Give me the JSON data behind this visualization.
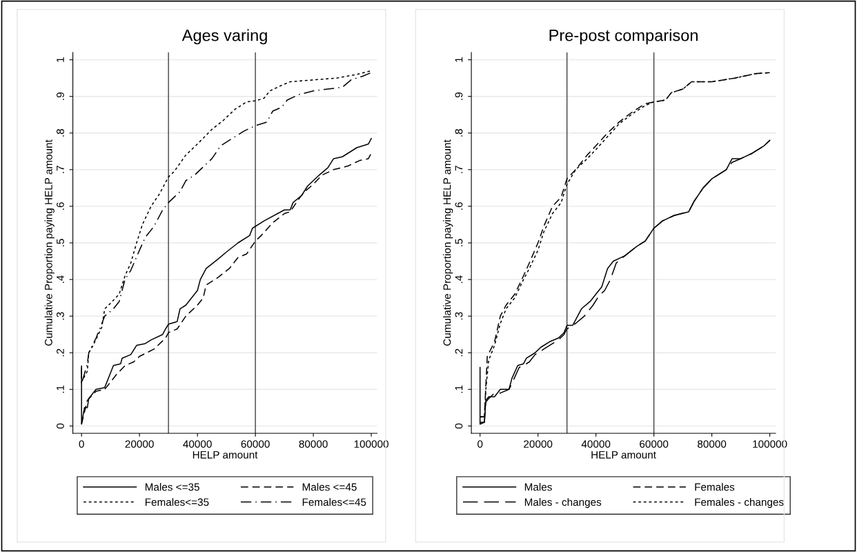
{
  "chart_data": [
    {
      "type": "line",
      "title": "Ages varing",
      "xlabel": "HELP amount",
      "ylabel": "Cumulative Proportion paying HELP amount",
      "xlim": [
        -3000,
        102000
      ],
      "ylim": [
        -0.02,
        1.02
      ],
      "xticks": [
        0,
        20000,
        40000,
        60000,
        80000,
        100000
      ],
      "yticks": [
        {
          "value": 0,
          "label": "0"
        },
        {
          "value": 0.1,
          "label": ".1"
        },
        {
          "value": 0.2,
          "label": ".2"
        },
        {
          "value": 0.3,
          "label": ".3"
        },
        {
          "value": 0.4,
          "label": ".4"
        },
        {
          "value": 0.5,
          "label": ".5"
        },
        {
          "value": 0.6,
          "label": ".6"
        },
        {
          "value": 0.7,
          "label": ".7"
        },
        {
          "value": 0.8,
          "label": ".8"
        },
        {
          "value": 0.9,
          "label": ".9"
        },
        {
          "value": 1,
          "label": "1"
        }
      ],
      "grid": "y",
      "legend": "bottom",
      "marker": "none",
      "ref_lines": [
        {
          "axis": "x",
          "value": 30000,
          "color": "#404040"
        },
        {
          "axis": "x",
          "value": 60000,
          "color": "#404040"
        }
      ],
      "series": [
        {
          "name": "Males <=35",
          "color": "#000000",
          "line_style": "solid",
          "x": [
            0,
            0,
            1000,
            2000,
            2500,
            5000,
            8000,
            10000,
            11000,
            13500,
            14000,
            17000,
            19000,
            22000,
            24000,
            28000,
            29000,
            30000,
            33000,
            34000,
            36000,
            40000,
            41000,
            43000,
            47000,
            50000,
            54000,
            58000,
            59000,
            63000,
            70000,
            72000,
            73000,
            76000,
            78000,
            82000,
            85000,
            87000,
            90000,
            95000,
            99000,
            100000
          ],
          "values": [
            0.155,
            0.005,
            0.05,
            0.05,
            0.075,
            0.1,
            0.105,
            0.145,
            0.165,
            0.17,
            0.185,
            0.195,
            0.22,
            0.225,
            0.235,
            0.25,
            0.265,
            0.278,
            0.285,
            0.32,
            0.33,
            0.37,
            0.4,
            0.43,
            0.455,
            0.475,
            0.5,
            0.52,
            0.54,
            0.56,
            0.59,
            0.59,
            0.61,
            0.63,
            0.655,
            0.685,
            0.705,
            0.73,
            0.735,
            0.76,
            0.77,
            0.785
          ]
        },
        {
          "name": "Males <=45",
          "color": "#000000",
          "line_style": "dashed",
          "x": [
            0,
            2000,
            5000,
            8000,
            12000,
            15000,
            18000,
            20000,
            25000,
            29000,
            30000,
            33000,
            36000,
            40000,
            42000,
            43000,
            47000,
            51000,
            54000,
            57000,
            60000,
            62000,
            66000,
            70000,
            72000,
            75000,
            77000,
            80000,
            83000,
            87000,
            92000,
            96000,
            99000,
            100000
          ],
          "values": [
            0.005,
            0.07,
            0.095,
            0.1,
            0.14,
            0.165,
            0.175,
            0.19,
            0.21,
            0.24,
            0.255,
            0.265,
            0.3,
            0.33,
            0.35,
            0.385,
            0.405,
            0.43,
            0.46,
            0.47,
            0.505,
            0.52,
            0.555,
            0.58,
            0.585,
            0.62,
            0.64,
            0.66,
            0.685,
            0.7,
            0.71,
            0.725,
            0.73,
            0.745
          ]
        },
        {
          "name": "Females<=35",
          "color": "#000000",
          "line_style": "dotted",
          "x": [
            0,
            0,
            2000,
            2500,
            4000,
            7000,
            8000,
            10000,
            13000,
            15000,
            17000,
            19000,
            21000,
            24000,
            27000,
            29000,
            30000,
            32000,
            36000,
            40000,
            45000,
            49000,
            53000,
            57000,
            60000,
            63000,
            65000,
            69000,
            72000,
            80000,
            88000,
            95000,
            100000
          ],
          "values": [
            0.165,
            0.12,
            0.15,
            0.2,
            0.22,
            0.27,
            0.32,
            0.335,
            0.36,
            0.41,
            0.445,
            0.5,
            0.55,
            0.6,
            0.635,
            0.665,
            0.68,
            0.695,
            0.74,
            0.77,
            0.81,
            0.835,
            0.865,
            0.885,
            0.888,
            0.895,
            0.915,
            0.93,
            0.94,
            0.945,
            0.95,
            0.96,
            0.97
          ]
        },
        {
          "name": "Females<=45",
          "color": "#000000",
          "line_style": "dashdot",
          "x": [
            0,
            0,
            2000,
            2500,
            5000,
            8000,
            11000,
            13000,
            15000,
            17000,
            20000,
            22000,
            25000,
            28000,
            30000,
            32000,
            34000,
            36000,
            39000,
            41000,
            45000,
            48000,
            52000,
            56000,
            60000,
            64000,
            66000,
            69000,
            71000,
            75000,
            80000,
            90000,
            93000,
            97000,
            100000
          ],
          "values": [
            0.16,
            0.115,
            0.17,
            0.2,
            0.24,
            0.3,
            0.32,
            0.34,
            0.4,
            0.425,
            0.48,
            0.515,
            0.545,
            0.59,
            0.61,
            0.625,
            0.64,
            0.67,
            0.685,
            0.7,
            0.73,
            0.765,
            0.785,
            0.805,
            0.82,
            0.83,
            0.86,
            0.87,
            0.89,
            0.905,
            0.915,
            0.925,
            0.945,
            0.955,
            0.965
          ]
        }
      ]
    },
    {
      "type": "line",
      "title": "Pre-post comparison",
      "xlabel": "HELP amount",
      "ylabel": "Cumulative Proportion paying HELP amount",
      "xlim": [
        -3000,
        102000
      ],
      "ylim": [
        -0.02,
        1.02
      ],
      "xticks": [
        0,
        20000,
        40000,
        60000,
        80000,
        100000
      ],
      "yticks": [
        {
          "value": 0,
          "label": "0"
        },
        {
          "value": 0.1,
          "label": ".1"
        },
        {
          "value": 0.2,
          "label": ".2"
        },
        {
          "value": 0.3,
          "label": ".3"
        },
        {
          "value": 0.4,
          "label": ".4"
        },
        {
          "value": 0.5,
          "label": ".5"
        },
        {
          "value": 0.6,
          "label": ".6"
        },
        {
          "value": 0.7,
          "label": ".7"
        },
        {
          "value": 0.8,
          "label": ".8"
        },
        {
          "value": 0.9,
          "label": ".9"
        },
        {
          "value": 1,
          "label": "1"
        }
      ],
      "grid": "y",
      "legend": "bottom",
      "marker": "none",
      "ref_lines": [
        {
          "axis": "x",
          "value": 30000,
          "color": "#404040"
        },
        {
          "axis": "x",
          "value": 60000,
          "color": "#404040"
        }
      ],
      "series": [
        {
          "name": "Males",
          "color": "#000000",
          "line_style": "solid",
          "x": [
            0,
            0,
            1500,
            2000,
            3000,
            5000,
            7000,
            10000,
            11000,
            13000,
            15000,
            16000,
            19000,
            21000,
            24000,
            27000,
            29000,
            30000,
            32000,
            35000,
            38000,
            40000,
            42000,
            44000,
            46000,
            50000,
            54000,
            57000,
            60000,
            63000,
            67000,
            72000,
            74000,
            77000,
            80000,
            85000,
            87000,
            90000,
            94000,
            98000,
            100000
          ],
          "values": [
            0.16,
            0.005,
            0.01,
            0.07,
            0.08,
            0.08,
            0.1,
            0.1,
            0.13,
            0.165,
            0.17,
            0.185,
            0.2,
            0.215,
            0.23,
            0.24,
            0.255,
            0.275,
            0.275,
            0.32,
            0.34,
            0.36,
            0.38,
            0.43,
            0.45,
            0.465,
            0.49,
            0.505,
            0.54,
            0.56,
            0.575,
            0.585,
            0.615,
            0.65,
            0.675,
            0.7,
            0.73,
            0.73,
            0.745,
            0.765,
            0.78
          ]
        },
        {
          "name": "Females",
          "color": "#000000",
          "line_style": "dashed",
          "x": [
            0,
            1500,
            2000,
            2500,
            5000,
            7000,
            9000,
            12000,
            15000,
            17000,
            20000,
            22000,
            25000,
            28000,
            30000,
            33000,
            37000,
            40000,
            44000,
            48000,
            53000,
            57000,
            60000,
            64000,
            66000,
            70000,
            73000,
            80000,
            88000,
            95000,
            100000
          ],
          "values": [
            0.025,
            0.025,
            0.11,
            0.19,
            0.23,
            0.3,
            0.33,
            0.36,
            0.41,
            0.445,
            0.5,
            0.545,
            0.6,
            0.625,
            0.675,
            0.7,
            0.74,
            0.765,
            0.8,
            0.83,
            0.86,
            0.88,
            0.885,
            0.89,
            0.91,
            0.92,
            0.94,
            0.94,
            0.95,
            0.962,
            0.965
          ]
        },
        {
          "name": "Males - changes",
          "color": "#000000",
          "line_style": "longdash",
          "x": [
            0,
            1500,
            2000,
            3000,
            5000,
            7000,
            10000,
            11500,
            13500,
            15000,
            17000,
            19000,
            22000,
            24000,
            27000,
            29000,
            30000,
            33000,
            36000,
            39000,
            41000,
            43000,
            45000,
            47000,
            50000,
            54000,
            57000,
            60000,
            63000,
            67000,
            72000,
            74000,
            77000,
            80000,
            85000,
            87000,
            90000,
            94000,
            98000,
            100000
          ],
          "values": [
            0.01,
            0.01,
            0.065,
            0.075,
            0.09,
            0.09,
            0.1,
            0.125,
            0.16,
            0.165,
            0.175,
            0.195,
            0.21,
            0.22,
            0.235,
            0.25,
            0.265,
            0.28,
            0.3,
            0.33,
            0.355,
            0.37,
            0.4,
            0.445,
            0.465,
            0.49,
            0.505,
            0.54,
            0.56,
            0.575,
            0.585,
            0.615,
            0.65,
            0.675,
            0.7,
            0.72,
            0.73,
            0.745,
            0.765,
            0.78
          ]
        },
        {
          "name": "Females - changes",
          "color": "#000000",
          "line_style": "dotted",
          "x": [
            0,
            1500,
            2000,
            3000,
            5000,
            7000,
            9000,
            12000,
            15000,
            17000,
            20000,
            22000,
            25000,
            28000,
            30000,
            33000,
            37000,
            40000,
            44000,
            48000,
            53000,
            57000,
            60000,
            64000,
            66000,
            70000,
            73000,
            80000,
            88000,
            95000,
            100000
          ],
          "values": [
            0.025,
            0.025,
            0.1,
            0.18,
            0.22,
            0.28,
            0.32,
            0.35,
            0.4,
            0.43,
            0.48,
            0.53,
            0.58,
            0.61,
            0.66,
            0.7,
            0.73,
            0.755,
            0.79,
            0.825,
            0.855,
            0.875,
            0.885,
            0.89,
            0.91,
            0.92,
            0.94,
            0.94,
            0.95,
            0.962,
            0.965
          ]
        }
      ]
    }
  ]
}
